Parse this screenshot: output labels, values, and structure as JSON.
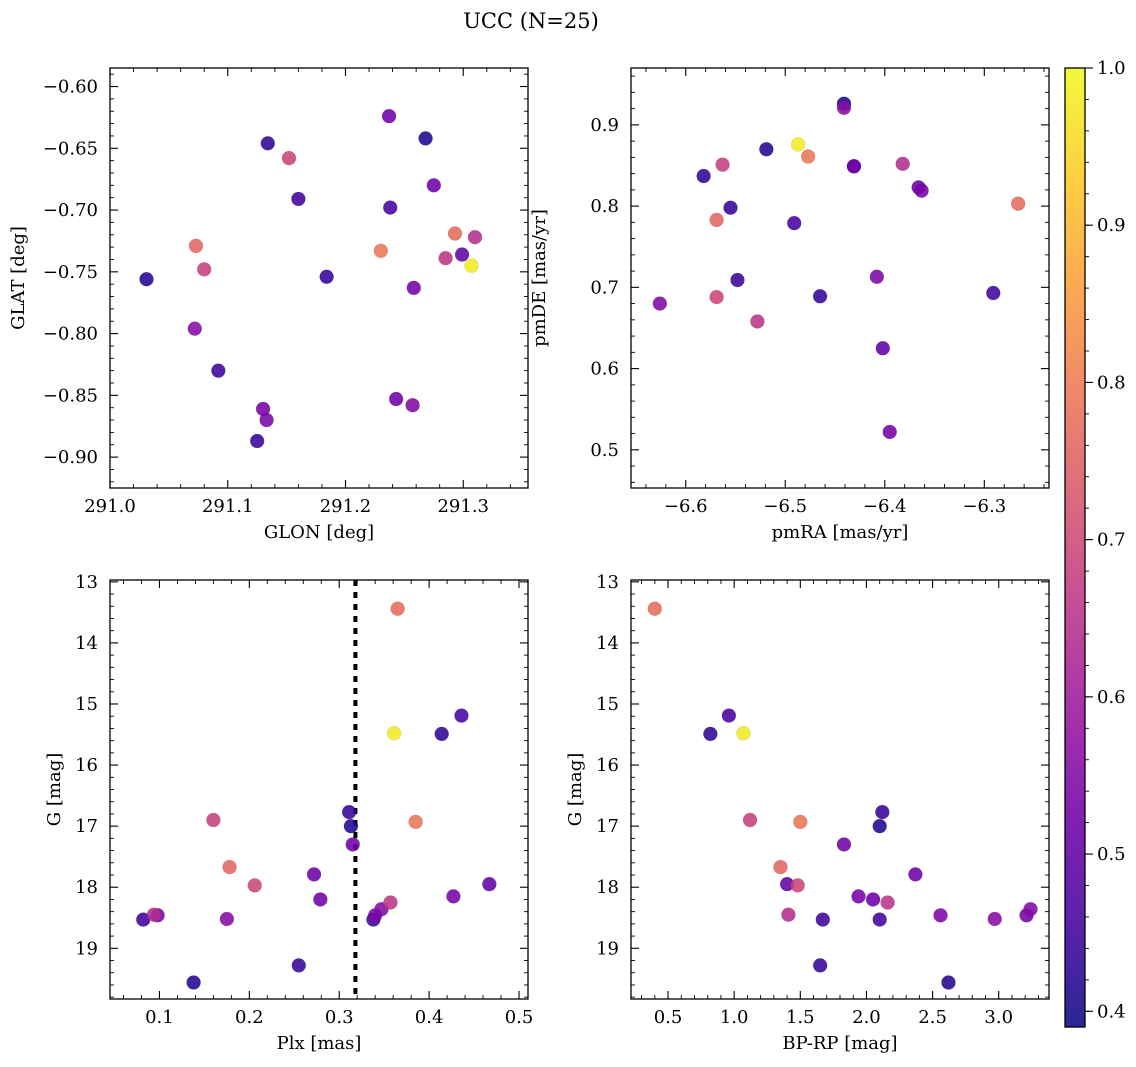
{
  "figure": {
    "title": "UCC (N=25)",
    "colorbar": {
      "ticks": [
        "0.4",
        "0.5",
        "0.6",
        "0.7",
        "0.8",
        "0.9",
        "1.0"
      ],
      "range": [
        0.39,
        1.0
      ],
      "colormap": "plasma"
    }
  },
  "chart_data": [
    {
      "type": "scatter",
      "id": "sky",
      "xlabel": "GLON [deg]",
      "ylabel": "GLAT [deg]",
      "xlim": [
        291.0,
        291.355
      ],
      "ylim": [
        -0.925,
        -0.585
      ],
      "y_inverted": false,
      "xticks": [
        291.0,
        291.1,
        291.2,
        291.3
      ],
      "xtick_labels": [
        "291.0",
        "291.1",
        "291.2",
        "291.3"
      ],
      "yticks": [
        -0.6,
        -0.65,
        -0.7,
        -0.75,
        -0.8,
        -0.85,
        -0.9
      ],
      "ytick_labels": [
        "−0.60",
        "−0.65",
        "−0.70",
        "−0.75",
        "−0.80",
        "−0.85",
        "−0.90"
      ]
    },
    {
      "type": "scatter",
      "id": "pm",
      "xlabel": "pmRA [mas/yr]",
      "ylabel": "pmDE [mas/yr]",
      "xlim": [
        -6.655,
        -6.235
      ],
      "ylim": [
        0.453,
        0.97
      ],
      "y_inverted": false,
      "xticks": [
        -6.6,
        -6.5,
        -6.4,
        -6.3
      ],
      "xtick_labels": [
        "−6.6",
        "−6.5",
        "−6.4",
        "−6.3"
      ],
      "yticks": [
        0.5,
        0.6,
        0.7,
        0.8,
        0.9
      ],
      "ytick_labels": [
        "0.5",
        "0.6",
        "0.7",
        "0.8",
        "0.9"
      ]
    },
    {
      "type": "scatter",
      "id": "plx",
      "xlabel": "Plx [mas]",
      "ylabel": "G [mag]",
      "xlim": [
        0.045,
        0.51
      ],
      "ylim": [
        19.83,
        12.97
      ],
      "y_inverted": true,
      "xticks": [
        0.1,
        0.2,
        0.3,
        0.4,
        0.5
      ],
      "xtick_labels": [
        "0.1",
        "0.2",
        "0.3",
        "0.4",
        "0.5"
      ],
      "yticks": [
        13,
        14,
        15,
        16,
        17,
        18,
        19
      ],
      "ytick_labels": [
        "13",
        "14",
        "15",
        "16",
        "17",
        "18",
        "19"
      ],
      "vline": 0.318
    },
    {
      "type": "scatter",
      "id": "cmd",
      "xlabel": "BP-RP [mag]",
      "ylabel": "G [mag]",
      "xlim": [
        0.22,
        3.38
      ],
      "ylim": [
        19.83,
        12.97
      ],
      "y_inverted": true,
      "xticks": [
        0.5,
        1.0,
        1.5,
        2.0,
        2.5,
        3.0
      ],
      "xtick_labels": [
        "0.5",
        "1.0",
        "1.5",
        "2.0",
        "2.5",
        "3.0"
      ],
      "yticks": [
        13,
        14,
        15,
        16,
        17,
        18,
        19
      ],
      "ytick_labels": [
        "13",
        "14",
        "15",
        "16",
        "17",
        "18",
        "19"
      ]
    }
  ],
  "stars": [
    {
      "glon": 291.031,
      "glat": -0.756,
      "pmra": -6.519,
      "pmde": 0.87,
      "plx": 0.138,
      "g": 19.56,
      "bprp": 2.62,
      "prob": 0.42
    },
    {
      "glon": 291.073,
      "glat": -0.729,
      "pmra": -6.569,
      "pmde": 0.783,
      "plx": 0.178,
      "g": 17.67,
      "bprp": 1.35,
      "prob": 0.76
    },
    {
      "glon": 291.072,
      "glat": -0.796,
      "pmra": -6.441,
      "pmde": 0.921,
      "plx": 0.175,
      "g": 18.52,
      "bprp": 2.97,
      "prob": 0.56
    },
    {
      "glon": 291.08,
      "glat": -0.748,
      "pmra": -6.563,
      "pmde": 0.851,
      "plx": 0.16,
      "g": 16.9,
      "bprp": 1.12,
      "prob": 0.68
    },
    {
      "glon": 291.092,
      "glat": -0.83,
      "pmra": -6.548,
      "pmde": 0.709,
      "plx": 0.082,
      "g": 18.53,
      "bprp": 1.67,
      "prob": 0.45
    },
    {
      "glon": 291.125,
      "glat": -0.887,
      "pmra": -6.465,
      "pmde": 0.689,
      "plx": 0.255,
      "g": 19.28,
      "bprp": 1.65,
      "prob": 0.44
    },
    {
      "glon": 291.13,
      "glat": -0.861,
      "pmra": -6.395,
      "pmde": 0.522,
      "plx": 0.098,
      "g": 18.46,
      "bprp": 3.21,
      "prob": 0.53
    },
    {
      "glon": 291.133,
      "glat": -0.87,
      "pmra": -6.408,
      "pmde": 0.713,
      "plx": 0.34,
      "g": 18.46,
      "bprp": 2.56,
      "prob": 0.54
    },
    {
      "glon": 291.134,
      "glat": -0.646,
      "pmra": -6.582,
      "pmde": 0.837,
      "plx": 0.414,
      "g": 15.49,
      "bprp": 0.82,
      "prob": 0.43
    },
    {
      "glon": 291.152,
      "glat": -0.658,
      "pmra": -6.569,
      "pmde": 0.688,
      "plx": 0.206,
      "g": 17.97,
      "bprp": 1.48,
      "prob": 0.69
    },
    {
      "glon": 291.16,
      "glat": -0.691,
      "pmra": -6.291,
      "pmde": 0.693,
      "plx": 0.338,
      "g": 18.53,
      "bprp": 2.1,
      "prob": 0.45
    },
    {
      "glon": 291.184,
      "glat": -0.754,
      "pmra": -6.555,
      "pmde": 0.798,
      "plx": 0.311,
      "g": 16.77,
      "bprp": 2.12,
      "prob": 0.44
    },
    {
      "glon": 291.23,
      "glat": -0.733,
      "pmra": -6.477,
      "pmde": 0.861,
      "plx": 0.385,
      "g": 16.93,
      "bprp": 1.5,
      "prob": 0.79
    },
    {
      "glon": 291.237,
      "glat": -0.624,
      "pmra": -6.431,
      "pmde": 0.849,
      "plx": 0.272,
      "g": 17.79,
      "bprp": 2.37,
      "prob": 0.52
    },
    {
      "glon": 291.238,
      "glat": -0.698,
      "pmra": -6.491,
      "pmde": 0.779,
      "plx": 0.436,
      "g": 15.19,
      "bprp": 0.96,
      "prob": 0.46
    },
    {
      "glon": 291.243,
      "glat": -0.853,
      "pmra": -6.431,
      "pmde": 0.849,
      "plx": 0.315,
      "g": 17.3,
      "bprp": 1.83,
      "prob": 0.52
    },
    {
      "glon": 291.257,
      "glat": -0.858,
      "pmra": -6.626,
      "pmde": 0.68,
      "plx": 0.347,
      "g": 18.36,
      "bprp": 3.24,
      "prob": 0.55
    },
    {
      "glon": 291.258,
      "glat": -0.763,
      "pmra": -6.363,
      "pmde": 0.819,
      "plx": 0.427,
      "g": 18.15,
      "bprp": 1.94,
      "prob": 0.53
    },
    {
      "glon": 291.268,
      "glat": -0.642,
      "pmra": -6.441,
      "pmde": 0.926,
      "plx": 0.313,
      "g": 17.0,
      "bprp": 2.1,
      "prob": 0.41
    },
    {
      "glon": 291.275,
      "glat": -0.68,
      "pmra": -6.366,
      "pmde": 0.823,
      "plx": 0.279,
      "g": 18.2,
      "bprp": 2.05,
      "prob": 0.52
    },
    {
      "glon": 291.285,
      "glat": -0.739,
      "pmra": -6.528,
      "pmde": 0.658,
      "plx": 0.357,
      "g": 18.25,
      "bprp": 2.16,
      "prob": 0.66
    },
    {
      "glon": 291.293,
      "glat": -0.719,
      "pmra": -6.266,
      "pmde": 0.803,
      "plx": 0.365,
      "g": 13.44,
      "bprp": 0.4,
      "prob": 0.77
    },
    {
      "glon": 291.299,
      "glat": -0.736,
      "pmra": -6.402,
      "pmde": 0.625,
      "plx": 0.467,
      "g": 17.95,
      "bprp": 1.4,
      "prob": 0.5
    },
    {
      "glon": 291.307,
      "glat": -0.745,
      "pmra": -6.487,
      "pmde": 0.876,
      "plx": 0.361,
      "g": 15.48,
      "bprp": 1.07,
      "prob": 0.98
    },
    {
      "glon": 291.31,
      "glat": -0.722,
      "pmra": -6.382,
      "pmde": 0.852,
      "plx": 0.094,
      "g": 18.45,
      "bprp": 1.41,
      "prob": 0.64
    }
  ]
}
